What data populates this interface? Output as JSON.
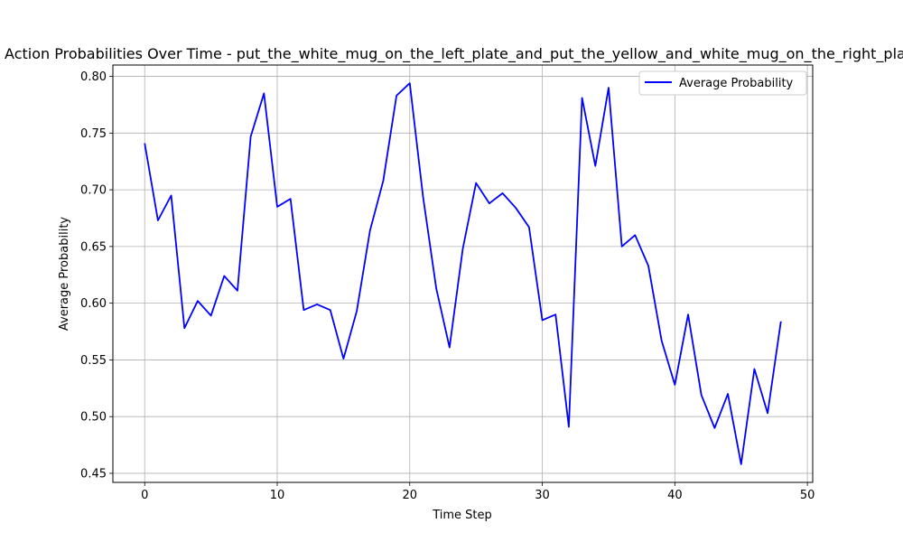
{
  "chart_data": {
    "type": "line",
    "title": "Action Probabilities Over Time - put_the_white_mug_on_the_left_plate_and_put_the_yellow_and_white_mug_on_the_right_plate",
    "xlabel": "Time Step",
    "ylabel": "Average Probability",
    "xlim": [
      -2.4,
      50.4
    ],
    "ylim": [
      0.442,
      0.81
    ],
    "x_ticks": [
      0,
      10,
      20,
      30,
      40,
      50
    ],
    "y_ticks": [
      0.45,
      0.5,
      0.55,
      0.6,
      0.65,
      0.7,
      0.75,
      0.8
    ],
    "x_tick_labels": [
      "0",
      "10",
      "20",
      "30",
      "40",
      "50"
    ],
    "y_tick_labels": [
      "0.45",
      "0.50",
      "0.55",
      "0.60",
      "0.65",
      "0.70",
      "0.75",
      "0.80"
    ],
    "grid": true,
    "legend_position": "top-right",
    "series": [
      {
        "name": "Average Probability",
        "color": "#0000ff",
        "x": [
          0,
          1,
          2,
          3,
          4,
          5,
          6,
          7,
          8,
          9,
          10,
          11,
          12,
          13,
          14,
          15,
          16,
          17,
          18,
          19,
          20,
          21,
          22,
          23,
          24,
          25,
          26,
          27,
          28,
          29,
          30,
          31,
          32,
          33,
          34,
          35,
          36,
          37,
          38,
          39,
          40,
          41,
          42,
          43,
          44,
          45,
          46,
          47,
          48
        ],
        "values": [
          0.741,
          0.673,
          0.695,
          0.578,
          0.602,
          0.589,
          0.624,
          0.611,
          0.747,
          0.785,
          0.685,
          0.692,
          0.594,
          0.599,
          0.594,
          0.551,
          0.593,
          0.664,
          0.708,
          0.783,
          0.794,
          0.694,
          0.613,
          0.561,
          0.648,
          0.706,
          0.688,
          0.697,
          0.684,
          0.667,
          0.585,
          0.59,
          0.491,
          0.781,
          0.721,
          0.79,
          0.65,
          0.66,
          0.633,
          0.567,
          0.528,
          0.59,
          0.519,
          0.49,
          0.52,
          0.458,
          0.542,
          0.503,
          0.584
        ]
      }
    ]
  }
}
